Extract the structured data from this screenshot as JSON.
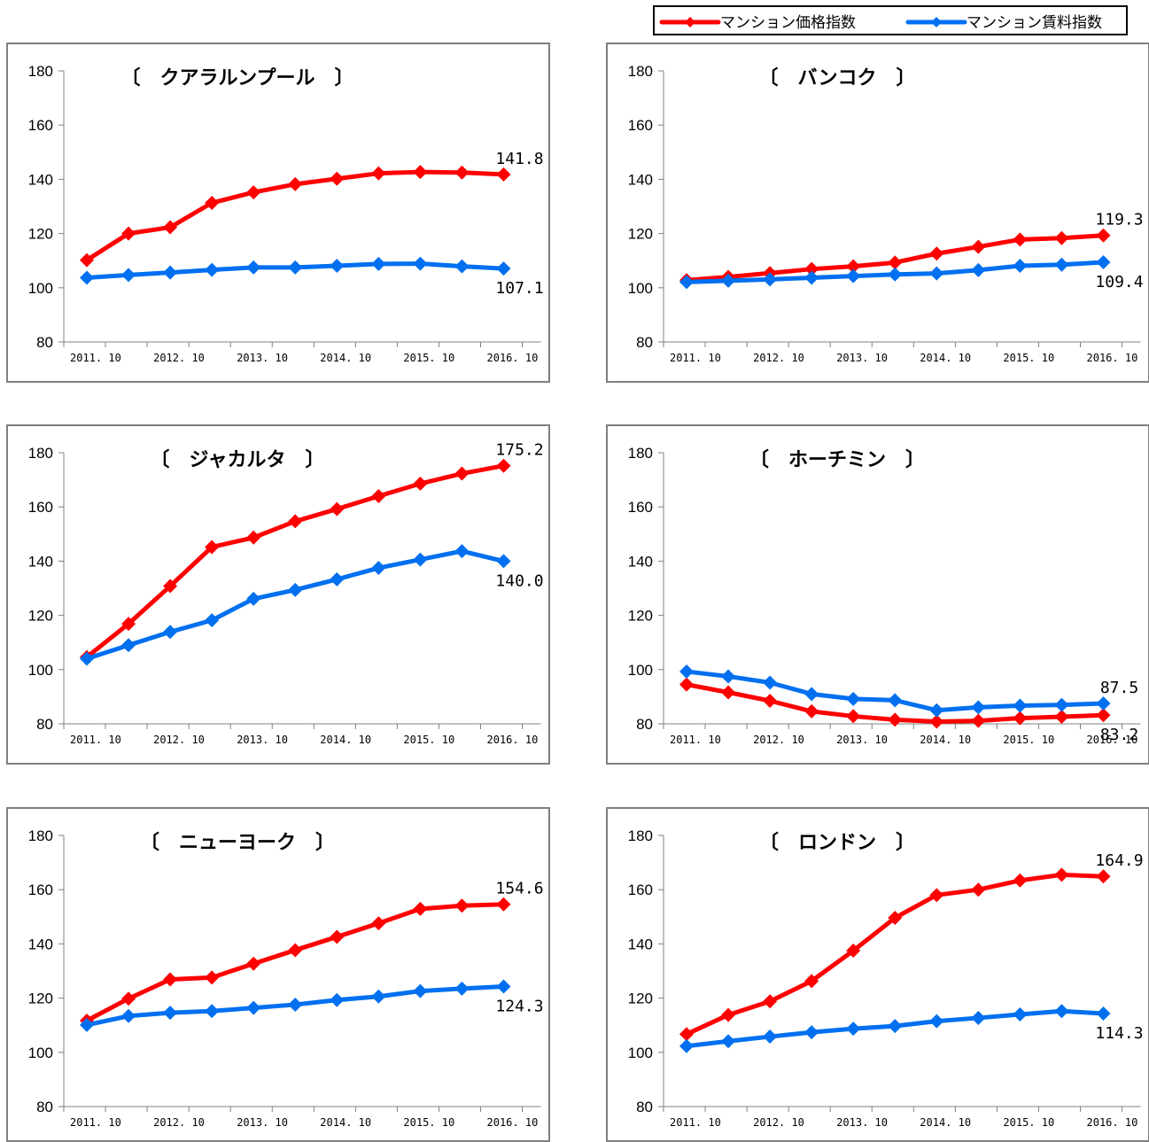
{
  "legend": {
    "items": [
      {
        "label": "マンション価格指数",
        "color": "#ff0000"
      },
      {
        "label": "マンション賃料指数",
        "color": "#0070f0"
      }
    ]
  },
  "chart_data": [
    {
      "type": "line",
      "title": "〔　クアラルンプール　〕",
      "x": [
        "2011.10",
        "2012.04",
        "2012.10",
        "2013.04",
        "2013.10",
        "2014.04",
        "2014.10",
        "2015.04",
        "2015.10",
        "2016.04",
        "2016.10"
      ],
      "xticks": [
        "2011.10",
        "2012.10",
        "2013.10",
        "2014.10",
        "2015.10",
        "2016.10"
      ],
      "ylim": [
        80,
        180
      ],
      "yticks": [
        80,
        100,
        120,
        140,
        160,
        180
      ],
      "series": [
        {
          "name": "マンション価格指数",
          "values": [
            110.2,
            120.0,
            122.3,
            131.3,
            135.2,
            138.2,
            140.2,
            142.2,
            142.7,
            142.5,
            141.8
          ],
          "label": "141.8"
        },
        {
          "name": "マンション賃料指数",
          "values": [
            103.7,
            104.7,
            105.6,
            106.6,
            107.5,
            107.5,
            108.1,
            108.8,
            108.9,
            107.9,
            107.1
          ],
          "label": "107.1"
        }
      ]
    },
    {
      "type": "line",
      "title": "〔　バンコク　〕",
      "x": [
        "2011.10",
        "2012.04",
        "2012.10",
        "2013.04",
        "2013.10",
        "2014.04",
        "2014.10",
        "2015.04",
        "2015.10",
        "2016.04",
        "2016.10"
      ],
      "xticks": [
        "2011.10",
        "2012.10",
        "2013.10",
        "2014.10",
        "2015.10",
        "2016.10"
      ],
      "ylim": [
        80,
        180
      ],
      "yticks": [
        80,
        100,
        120,
        140,
        160,
        180
      ],
      "series": [
        {
          "name": "マンション価格指数",
          "values": [
            102.8,
            104.0,
            105.4,
            106.9,
            107.9,
            109.3,
            112.6,
            115.1,
            117.8,
            118.3,
            119.3
          ],
          "label": "119.3"
        },
        {
          "name": "マンション賃料指数",
          "values": [
            102.1,
            102.6,
            103.1,
            103.7,
            104.3,
            104.9,
            105.3,
            106.5,
            108.1,
            108.5,
            109.4
          ],
          "label": "109.4"
        }
      ]
    },
    {
      "type": "line",
      "title": "〔　ジャカルタ　〕",
      "x": [
        "2011.10",
        "2012.04",
        "2012.10",
        "2013.04",
        "2013.10",
        "2014.04",
        "2014.10",
        "2015.04",
        "2015.10",
        "2016.04",
        "2016.10"
      ],
      "xticks": [
        "2011.10",
        "2012.10",
        "2013.10",
        "2014.10",
        "2015.10",
        "2016.10"
      ],
      "ylim": [
        80,
        180
      ],
      "yticks": [
        80,
        100,
        120,
        140,
        160,
        180
      ],
      "series": [
        {
          "name": "マンション価格指数",
          "values": [
            104.6,
            116.9,
            130.8,
            145.2,
            148.7,
            154.7,
            159.2,
            164.0,
            168.6,
            172.3,
            175.2
          ],
          "label": "175.2"
        },
        {
          "name": "マンション賃料指数",
          "values": [
            104.0,
            109.0,
            113.9,
            118.2,
            126.1,
            129.4,
            133.3,
            137.5,
            140.6,
            143.7,
            140.0
          ],
          "label": "140.0"
        }
      ]
    },
    {
      "type": "line",
      "title": "〔　ホーチミン　〕",
      "x": [
        "2011.10",
        "2012.04",
        "2012.10",
        "2013.04",
        "2013.10",
        "2014.04",
        "2014.10",
        "2015.04",
        "2015.10",
        "2016.04",
        "2016.10"
      ],
      "xticks": [
        "2011.10",
        "2012.10",
        "2013.10",
        "2014.10",
        "2015.10",
        "2016.10"
      ],
      "ylim": [
        80,
        180
      ],
      "yticks": [
        80,
        100,
        120,
        140,
        160,
        180
      ],
      "series": [
        {
          "name": "マンション価格指数",
          "values": [
            94.5,
            91.6,
            88.5,
            84.6,
            82.8,
            81.5,
            80.8,
            81.1,
            82.1,
            82.6,
            83.2
          ],
          "label": "83.2"
        },
        {
          "name": "マンション賃料指数",
          "values": [
            99.3,
            97.5,
            95.2,
            91.0,
            89.2,
            88.7,
            85.0,
            86.1,
            86.7,
            87.0,
            87.5
          ],
          "label": "87.5"
        }
      ]
    },
    {
      "type": "line",
      "title": "〔　ニューヨーク　〕",
      "x": [
        "2011.10",
        "2012.04",
        "2012.10",
        "2013.04",
        "2013.10",
        "2014.04",
        "2014.10",
        "2015.04",
        "2015.10",
        "2016.04",
        "2016.10"
      ],
      "xticks": [
        "2011.10",
        "2012.10",
        "2013.10",
        "2014.10",
        "2015.10",
        "2016.10"
      ],
      "ylim": [
        80,
        180
      ],
      "yticks": [
        80,
        100,
        120,
        140,
        160,
        180
      ],
      "series": [
        {
          "name": "マンション価格指数",
          "values": [
            111.7,
            119.8,
            126.9,
            127.6,
            132.7,
            137.7,
            142.6,
            147.6,
            152.9,
            154.1,
            154.6
          ],
          "label": "154.6"
        },
        {
          "name": "マンション賃料指数",
          "values": [
            110.1,
            113.4,
            114.6,
            115.2,
            116.4,
            117.6,
            119.3,
            120.6,
            122.6,
            123.5,
            124.3
          ],
          "label": "124.3"
        }
      ]
    },
    {
      "type": "line",
      "title": "〔　ロンドン　〕",
      "x": [
        "2011.10",
        "2012.04",
        "2012.10",
        "2013.04",
        "2013.10",
        "2014.04",
        "2014.10",
        "2015.04",
        "2015.10",
        "2016.04",
        "2016.10"
      ],
      "xticks": [
        "2011.10",
        "2012.10",
        "2013.10",
        "2014.10",
        "2015.10",
        "2016.10"
      ],
      "ylim": [
        80,
        180
      ],
      "yticks": [
        80,
        100,
        120,
        140,
        160,
        180
      ],
      "series": [
        {
          "name": "マンション価格指数",
          "values": [
            106.7,
            113.8,
            118.8,
            126.3,
            137.5,
            149.6,
            158.0,
            160.0,
            163.4,
            165.5,
            164.9
          ],
          "label": "164.9"
        },
        {
          "name": "マンション賃料指数",
          "values": [
            102.3,
            104.1,
            105.8,
            107.4,
            108.7,
            109.7,
            111.5,
            112.7,
            114.0,
            115.2,
            114.3
          ],
          "label": "114.3"
        }
      ]
    }
  ]
}
